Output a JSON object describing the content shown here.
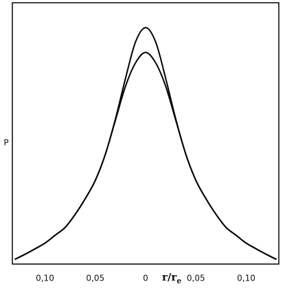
{
  "chart_data": {
    "type": "line",
    "y_label": "P",
    "x_label": "r/r",
    "x_label_sub": "e",
    "x": [
      -0.13,
      -0.12,
      -0.11,
      -0.1,
      -0.09,
      -0.08,
      -0.07,
      -0.06,
      -0.05,
      -0.04,
      -0.03,
      -0.02,
      -0.01,
      0,
      0.01,
      0.02,
      0.03,
      0.04,
      0.05,
      0.06,
      0.07,
      0.08,
      0.09,
      0.1,
      0.11,
      0.12,
      0.13
    ],
    "series": [
      {
        "color": "#000000",
        "values": [
          0.018,
          0.037,
          0.058,
          0.08,
          0.11,
          0.14,
          0.19,
          0.25,
          0.32,
          0.42,
          0.555,
          0.71,
          0.85,
          0.905,
          0.85,
          0.71,
          0.555,
          0.42,
          0.32,
          0.25,
          0.19,
          0.14,
          0.11,
          0.08,
          0.058,
          0.037,
          0.018
        ]
      },
      {
        "color": "#000000",
        "values": [
          0.018,
          0.037,
          0.058,
          0.08,
          0.11,
          0.14,
          0.19,
          0.25,
          0.32,
          0.42,
          0.55,
          0.68,
          0.77,
          0.81,
          0.77,
          0.68,
          0.55,
          0.42,
          0.32,
          0.25,
          0.19,
          0.14,
          0.11,
          0.08,
          0.058,
          0.037,
          0.018
        ]
      }
    ],
    "xlim": [
      -0.1324,
      0.1324
    ],
    "ylim": [
      0,
      1
    ],
    "xticks": [
      {
        "value": -0.1,
        "label": "0,10"
      },
      {
        "value": -0.05,
        "label": "0,05"
      },
      0,
      {
        "value": 0.05,
        "label": "0,05"
      },
      {
        "value": 0.1,
        "label": "0,10"
      }
    ],
    "grid": false
  }
}
